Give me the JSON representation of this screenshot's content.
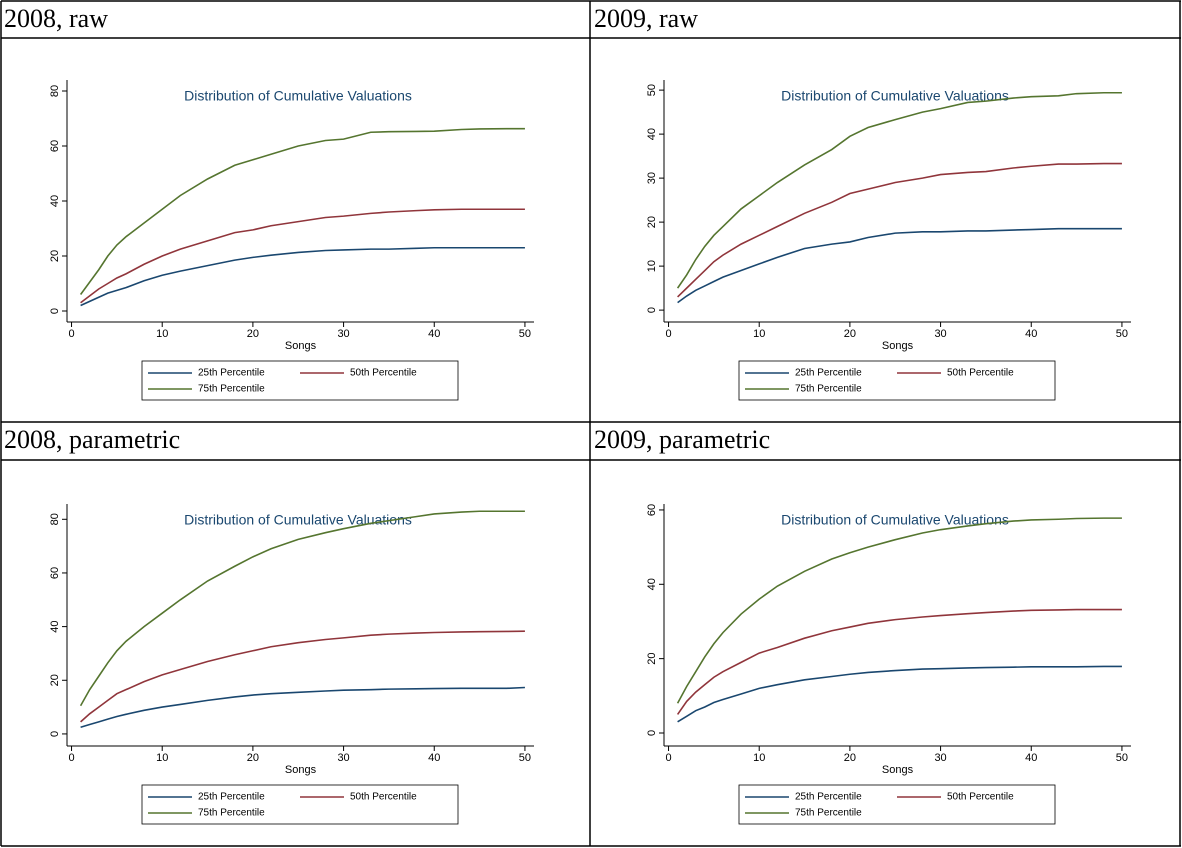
{
  "table": {
    "headings": [
      "2008, raw",
      "2009, raw",
      "2008, parametric",
      "2009, parametric"
    ]
  },
  "chart_data": [
    {
      "type": "line",
      "title": "Distribution of Cumulative Valuations",
      "x_label": "Songs",
      "x": [
        1,
        2,
        3,
        4,
        5,
        6,
        8,
        10,
        12,
        15,
        18,
        20,
        22,
        25,
        28,
        30,
        33,
        35,
        38,
        40,
        43,
        45,
        48,
        50
      ],
      "series": [
        {
          "name": "25th Percentile",
          "color": "#1a476f",
          "values": [
            2,
            3.5,
            5,
            6.5,
            7.5,
            8.5,
            11,
            13,
            14.5,
            16.5,
            18.5,
            19.5,
            20.3,
            21.3,
            22,
            22.2,
            22.5,
            22.5,
            22.8,
            23,
            23,
            23,
            23,
            23
          ]
        },
        {
          "name": "50th Percentile",
          "color": "#90353b",
          "values": [
            3,
            5.5,
            8,
            10,
            12,
            13.5,
            17,
            20,
            22.5,
            25.5,
            28.5,
            29.5,
            31,
            32.5,
            34,
            34.5,
            35.5,
            36,
            36.5,
            36.8,
            37,
            37,
            37,
            37
          ]
        },
        {
          "name": "75th Percentile",
          "color": "#55752f",
          "values": [
            6,
            10.5,
            15,
            20,
            24,
            27,
            32,
            37,
            42,
            48,
            53,
            55,
            57,
            60,
            62,
            62.5,
            65,
            65.2,
            65.3,
            65.4,
            66,
            66.2,
            66.3,
            66.3
          ]
        }
      ],
      "xlim": [
        -0.5,
        51
      ],
      "xticks": [
        0,
        10,
        20,
        30,
        40,
        50
      ],
      "ylim": [
        -4,
        84
      ],
      "yticks": [
        0,
        20,
        40,
        60,
        80
      ],
      "legend": "bottom"
    },
    {
      "type": "line",
      "title": "Distribution of Cumulative Valuations",
      "x_label": "Songs",
      "x": [
        1,
        2,
        3,
        4,
        5,
        6,
        8,
        10,
        12,
        15,
        18,
        20,
        22,
        25,
        28,
        30,
        33,
        35,
        38,
        40,
        43,
        45,
        48,
        50
      ],
      "series": [
        {
          "name": "25th Percentile",
          "color": "#1a476f",
          "values": [
            1.7,
            3.2,
            4.5,
            5.5,
            6.5,
            7.5,
            9,
            10.5,
            12,
            14,
            15,
            15.5,
            16.5,
            17.5,
            17.8,
            17.8,
            18,
            18,
            18.2,
            18.3,
            18.5,
            18.5,
            18.5,
            18.5
          ]
        },
        {
          "name": "50th Percentile",
          "color": "#90353b",
          "values": [
            3,
            5,
            7,
            9,
            11,
            12.5,
            15,
            17,
            19,
            22,
            24.5,
            26.5,
            27.5,
            29,
            30,
            30.8,
            31.3,
            31.5,
            32.3,
            32.7,
            33.2,
            33.2,
            33.3,
            33.3
          ]
        },
        {
          "name": "75th Percentile",
          "color": "#55752f",
          "values": [
            5,
            8,
            11.5,
            14.5,
            17,
            19,
            23,
            26,
            29,
            33,
            36.5,
            39.5,
            41.5,
            43.3,
            45,
            45.8,
            47.2,
            47.5,
            48.2,
            48.5,
            48.7,
            49.2,
            49.4,
            49.4
          ]
        }
      ],
      "xlim": [
        -0.5,
        51
      ],
      "xticks": [
        0,
        10,
        20,
        30,
        40,
        50
      ],
      "ylim": [
        -2.7,
        52.3
      ],
      "yticks": [
        0,
        10,
        20,
        30,
        40,
        50
      ],
      "legend": "bottom"
    },
    {
      "type": "line",
      "title": "Distribution of Cumulative Valuations",
      "x_label": "Songs",
      "x": [
        1,
        2,
        3,
        4,
        5,
        6,
        8,
        10,
        12,
        15,
        18,
        20,
        22,
        25,
        28,
        30,
        33,
        35,
        38,
        40,
        43,
        45,
        48,
        50
      ],
      "series": [
        {
          "name": "25th Percentile",
          "color": "#1a476f",
          "values": [
            2.5,
            3.5,
            4.5,
            5.5,
            6.5,
            7.3,
            8.8,
            10,
            11,
            12.5,
            13.8,
            14.5,
            15,
            15.5,
            16,
            16.3,
            16.5,
            16.7,
            16.8,
            16.9,
            17,
            17,
            17,
            17.3
          ]
        },
        {
          "name": "50th Percentile",
          "color": "#90353b",
          "values": [
            4.5,
            7.5,
            10,
            12.5,
            15,
            16.5,
            19.5,
            22,
            24,
            27,
            29.5,
            31,
            32.5,
            34,
            35.2,
            35.8,
            36.8,
            37.2,
            37.6,
            37.8,
            38,
            38.1,
            38.2,
            38.3
          ]
        },
        {
          "name": "75th Percentile",
          "color": "#55752f",
          "values": [
            10.5,
            16.5,
            21.5,
            26.5,
            31,
            34.5,
            40,
            45,
            50,
            57,
            62.5,
            66,
            69,
            72.5,
            75,
            76.5,
            78.5,
            79.5,
            81,
            82,
            82.7,
            83,
            83,
            83
          ]
        }
      ],
      "xlim": [
        -0.5,
        51
      ],
      "xticks": [
        0,
        10,
        20,
        30,
        40,
        50
      ],
      "ylim": [
        -4.5,
        85.7
      ],
      "yticks": [
        0,
        20,
        40,
        60,
        80
      ],
      "legend": "bottom"
    },
    {
      "type": "line",
      "title": "Distribution of Cumulative Valuations",
      "x_label": "Songs",
      "x": [
        1,
        2,
        3,
        4,
        5,
        6,
        8,
        10,
        12,
        15,
        18,
        20,
        22,
        25,
        28,
        30,
        33,
        35,
        38,
        40,
        43,
        45,
        48,
        50
      ],
      "series": [
        {
          "name": "25th Percentile",
          "color": "#1a476f",
          "values": [
            3,
            4.5,
            6,
            7,
            8.2,
            9,
            10.5,
            12,
            13,
            14.3,
            15.2,
            15.8,
            16.3,
            16.8,
            17.2,
            17.3,
            17.5,
            17.6,
            17.7,
            17.8,
            17.8,
            17.8,
            17.9,
            17.9
          ]
        },
        {
          "name": "50th Percentile",
          "color": "#90353b",
          "values": [
            5,
            8.5,
            11,
            13,
            15,
            16.5,
            19,
            21.5,
            23,
            25.5,
            27.5,
            28.5,
            29.5,
            30.5,
            31.2,
            31.6,
            32.1,
            32.4,
            32.8,
            33,
            33.1,
            33.2,
            33.2,
            33.2
          ]
        },
        {
          "name": "75th Percentile",
          "color": "#55752f",
          "values": [
            8,
            12.5,
            16.5,
            20.5,
            24,
            27,
            32,
            36,
            39.5,
            43.5,
            46.8,
            48.5,
            50,
            52,
            53.8,
            54.7,
            55.7,
            56.3,
            57,
            57.3,
            57.5,
            57.7,
            57.8,
            57.8
          ]
        }
      ],
      "xlim": [
        -0.5,
        51
      ],
      "xticks": [
        0,
        10,
        20,
        30,
        40,
        50
      ],
      "ylim": [
        -3.5,
        61.6
      ],
      "yticks": [
        0,
        20,
        40,
        60
      ],
      "legend": "bottom"
    }
  ]
}
